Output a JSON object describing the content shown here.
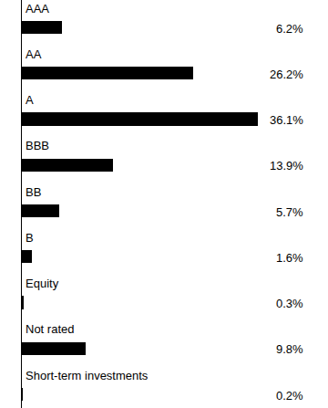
{
  "chart_data": {
    "type": "bar",
    "orientation": "horizontal",
    "categories": [
      "AAA",
      "AA",
      "A",
      "BBB",
      "BB",
      "B",
      "Equity",
      "Not rated",
      "Short-term investments"
    ],
    "values": [
      6.2,
      26.2,
      36.1,
      13.9,
      5.7,
      1.6,
      0.3,
      9.8,
      0.2
    ],
    "value_labels": [
      "6.2%",
      "26.2%",
      "36.1%",
      "13.9%",
      "5.7%",
      "1.6%",
      "0.3%",
      "9.8%",
      "0.2%"
    ],
    "color": "#000000",
    "xlim": [
      0,
      36.1
    ],
    "data_labels": true,
    "tick_labels": false,
    "grid": false
  }
}
